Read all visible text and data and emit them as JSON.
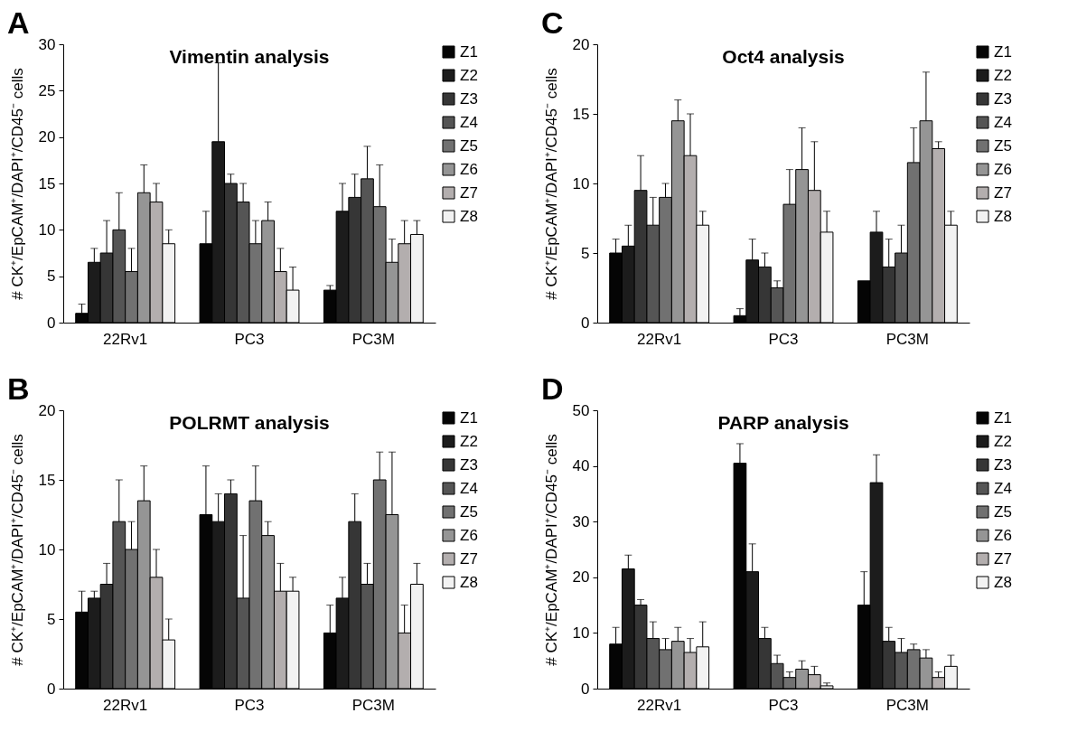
{
  "chart_data": [
    {
      "type": "bar",
      "title": "Vimentin analysis",
      "ylabel": "# CK⁺/EpCAM⁺/DAPI⁺/CD45⁻ cells",
      "annotations": [
        "A"
      ],
      "categories": [
        "22Rv1",
        "PC3",
        "PC3M"
      ],
      "ylim": [
        0,
        30
      ],
      "yticks": [
        0,
        5,
        10,
        15,
        20,
        25,
        30
      ],
      "grid": false,
      "legend": "top right",
      "series": [
        {
          "name": "Z1",
          "color": "#050505",
          "values": [
            1,
            8.5,
            3.5
          ],
          "errors": [
            [
              1,
              2
            ],
            [
              8.5,
              12
            ],
            [
              3.5,
              4
            ]
          ]
        },
        {
          "name": "Z2",
          "color": "#1c1c1c",
          "values": [
            6.5,
            19.5,
            12
          ],
          "errors": [
            [
              6.5,
              8
            ],
            [
              19.5,
              28
            ],
            [
              12,
              15
            ]
          ]
        },
        {
          "name": "Z3",
          "color": "#363636",
          "values": [
            7.5,
            15,
            13.5
          ],
          "errors": [
            [
              7.5,
              11
            ],
            [
              15,
              16
            ],
            [
              13.5,
              16
            ]
          ]
        },
        {
          "name": "Z4",
          "color": "#555555",
          "values": [
            10,
            13,
            15.5
          ],
          "errors": [
            [
              10,
              14
            ],
            [
              13,
              15
            ],
            [
              15.5,
              19
            ]
          ]
        },
        {
          "name": "Z5",
          "color": "#717171",
          "values": [
            5.5,
            8.5,
            12.5
          ],
          "errors": [
            [
              5.5,
              8
            ],
            [
              8.5,
              11
            ],
            [
              12.5,
              17
            ]
          ]
        },
        {
          "name": "Z6",
          "color": "#959595",
          "values": [
            14,
            11,
            6.5
          ],
          "errors": [
            [
              14,
              17
            ],
            [
              11,
              13
            ],
            [
              6.5,
              9
            ]
          ]
        },
        {
          "name": "Z7",
          "color": "#b3aeae",
          "values": [
            13,
            5.5,
            8.5
          ],
          "errors": [
            [
              13,
              15
            ],
            [
              5.5,
              8
            ],
            [
              8.5,
              11
            ]
          ]
        },
        {
          "name": "Z8",
          "color": "#f2f2f2",
          "values": [
            8.5,
            3.5,
            9.5
          ],
          "errors": [
            [
              8.5,
              10
            ],
            [
              3.5,
              6
            ],
            [
              9.5,
              11
            ]
          ]
        }
      ]
    },
    {
      "type": "bar",
      "title": "Oct4 analysis",
      "ylabel": "# CK⁺/EpCAM⁺/DAPI⁺/CD45⁻ cells",
      "annotations": [
        "C"
      ],
      "categories": [
        "22Rv1",
        "PC3",
        "PC3M"
      ],
      "ylim": [
        0,
        20
      ],
      "yticks": [
        0,
        5,
        10,
        15,
        20
      ],
      "grid": false,
      "legend": "top right",
      "series": [
        {
          "name": "Z1",
          "color": "#050505",
          "values": [
            5,
            0.5,
            3
          ],
          "errors": [
            [
              5,
              6
            ],
            [
              0.5,
              1
            ],
            null
          ]
        },
        {
          "name": "Z2",
          "color": "#1c1c1c",
          "values": [
            5.5,
            4.5,
            6.5
          ],
          "errors": [
            [
              5.5,
              7
            ],
            [
              4.5,
              6
            ],
            [
              6.5,
              8
            ]
          ]
        },
        {
          "name": "Z3",
          "color": "#363636",
          "values": [
            9.5,
            4,
            4
          ],
          "errors": [
            [
              9.5,
              12
            ],
            [
              4,
              5
            ],
            [
              4,
              6
            ]
          ]
        },
        {
          "name": "Z4",
          "color": "#555555",
          "values": [
            7,
            2.5,
            5
          ],
          "errors": [
            [
              7,
              9
            ],
            [
              2.5,
              3
            ],
            [
              5,
              7
            ]
          ]
        },
        {
          "name": "Z5",
          "color": "#717171",
          "values": [
            9,
            8.5,
            11.5
          ],
          "errors": [
            [
              9,
              10
            ],
            [
              8.5,
              11
            ],
            [
              11.5,
              14
            ]
          ]
        },
        {
          "name": "Z6",
          "color": "#959595",
          "values": [
            14.5,
            11,
            14.5
          ],
          "errors": [
            [
              14.5,
              16
            ],
            [
              11,
              14
            ],
            [
              14.5,
              18
            ]
          ]
        },
        {
          "name": "Z7",
          "color": "#b3aeae",
          "values": [
            12,
            9.5,
            12.5
          ],
          "errors": [
            [
              12,
              15
            ],
            [
              9.5,
              13
            ],
            [
              12.5,
              13
            ]
          ]
        },
        {
          "name": "Z8",
          "color": "#f2f2f2",
          "values": [
            7,
            6.5,
            7
          ],
          "errors": [
            [
              7,
              8
            ],
            [
              6.5,
              8
            ],
            [
              7,
              8
            ]
          ]
        }
      ]
    },
    {
      "type": "bar",
      "title": "POLRMT analysis",
      "ylabel": "# CK⁺/EpCAM⁺/DAPI⁺/CD45⁻ cells",
      "annotations": [
        "B"
      ],
      "categories": [
        "22Rv1",
        "PC3",
        "PC3M"
      ],
      "ylim": [
        0,
        20
      ],
      "yticks": [
        0,
        5,
        10,
        15,
        20
      ],
      "grid": false,
      "legend": "top right",
      "series": [
        {
          "name": "Z1",
          "color": "#050505",
          "values": [
            5.5,
            12.5,
            4
          ],
          "errors": [
            [
              5.5,
              7
            ],
            [
              12.5,
              16
            ],
            [
              4,
              6
            ]
          ]
        },
        {
          "name": "Z2",
          "color": "#1c1c1c",
          "values": [
            6.5,
            12,
            6.5
          ],
          "errors": [
            [
              6.5,
              7
            ],
            [
              12,
              14
            ],
            [
              6.5,
              8
            ]
          ]
        },
        {
          "name": "Z3",
          "color": "#363636",
          "values": [
            7.5,
            14,
            12
          ],
          "errors": [
            [
              7.5,
              9
            ],
            [
              14,
              15
            ],
            [
              12,
              14
            ]
          ]
        },
        {
          "name": "Z4",
          "color": "#555555",
          "values": [
            12,
            6.5,
            7.5
          ],
          "errors": [
            [
              12,
              15
            ],
            [
              6.5,
              11
            ],
            [
              7.5,
              9
            ]
          ]
        },
        {
          "name": "Z5",
          "color": "#717171",
          "values": [
            10,
            13.5,
            15
          ],
          "errors": [
            [
              10,
              12
            ],
            [
              13.5,
              16
            ],
            [
              15,
              17
            ]
          ]
        },
        {
          "name": "Z6",
          "color": "#959595",
          "values": [
            13.5,
            11,
            12.5
          ],
          "errors": [
            [
              13.5,
              16
            ],
            [
              11,
              12
            ],
            [
              12.5,
              17
            ]
          ]
        },
        {
          "name": "Z7",
          "color": "#b3aeae",
          "values": [
            8,
            7,
            4
          ],
          "errors": [
            [
              8,
              10
            ],
            [
              7,
              9
            ],
            [
              4,
              6
            ]
          ]
        },
        {
          "name": "Z8",
          "color": "#f2f2f2",
          "values": [
            3.5,
            7,
            7.5
          ],
          "errors": [
            [
              3.5,
              5
            ],
            [
              7,
              8
            ],
            [
              7.5,
              9
            ]
          ]
        }
      ]
    },
    {
      "type": "bar",
      "title": "PARP analysis",
      "ylabel": "# CK⁺/EpCAM⁺/DAPI⁺/CD45⁻ cells",
      "annotations": [
        "D"
      ],
      "categories": [
        "22Rv1",
        "PC3",
        "PC3M"
      ],
      "ylim": [
        0,
        50
      ],
      "yticks": [
        0,
        10,
        20,
        30,
        40,
        50
      ],
      "grid": false,
      "legend": "top right",
      "series": [
        {
          "name": "Z1",
          "color": "#050505",
          "values": [
            8,
            40.5,
            15
          ],
          "errors": [
            [
              8,
              11
            ],
            [
              40.5,
              44
            ],
            [
              15,
              21
            ]
          ]
        },
        {
          "name": "Z2",
          "color": "#1c1c1c",
          "values": [
            21.5,
            21,
            37
          ],
          "errors": [
            [
              21.5,
              24
            ],
            [
              21,
              26
            ],
            [
              37,
              42
            ]
          ]
        },
        {
          "name": "Z3",
          "color": "#363636",
          "values": [
            15,
            9,
            8.5
          ],
          "errors": [
            [
              15,
              16
            ],
            [
              9,
              11
            ],
            [
              8.5,
              11
            ]
          ]
        },
        {
          "name": "Z4",
          "color": "#555555",
          "values": [
            9,
            4.5,
            6.5
          ],
          "errors": [
            [
              9,
              12
            ],
            [
              4.5,
              6
            ],
            [
              6.5,
              9
            ]
          ]
        },
        {
          "name": "Z5",
          "color": "#717171",
          "values": [
            7,
            2,
            7
          ],
          "errors": [
            [
              7,
              9
            ],
            [
              2,
              3
            ],
            [
              7,
              8
            ]
          ]
        },
        {
          "name": "Z6",
          "color": "#959595",
          "values": [
            8.5,
            3.5,
            5.5
          ],
          "errors": [
            [
              8.5,
              11
            ],
            [
              3.5,
              5
            ],
            [
              5.5,
              7
            ]
          ]
        },
        {
          "name": "Z7",
          "color": "#b3aeae",
          "values": [
            6.5,
            2.5,
            2
          ],
          "errors": [
            [
              6.5,
              9
            ],
            [
              2.5,
              4
            ],
            [
              2,
              3
            ]
          ]
        },
        {
          "name": "Z8",
          "color": "#f2f2f2",
          "values": [
            7.5,
            0.5,
            4
          ],
          "errors": [
            [
              7.5,
              12
            ],
            [
              0.5,
              1
            ],
            [
              4,
              6
            ]
          ]
        }
      ]
    }
  ]
}
